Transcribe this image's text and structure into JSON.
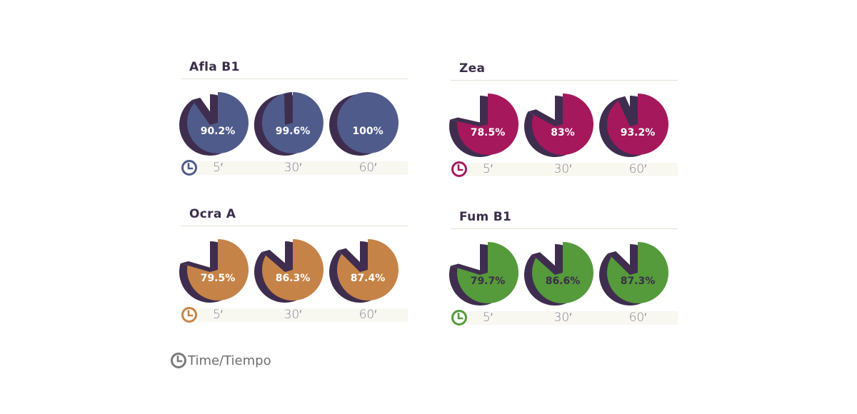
{
  "chart_data": [
    {
      "type": "pie",
      "title": "Afla B1",
      "categories": [
        "5′",
        "30′",
        "60′"
      ],
      "values": [
        90.2,
        99.6,
        100
      ],
      "labels": [
        "90.2%",
        "99.6%",
        "100%"
      ],
      "color": "#4f5b8b",
      "shadow_color": "#3f2d4f",
      "label_color": "#ffffff"
    },
    {
      "type": "pie",
      "title": "Zea",
      "categories": [
        "5′",
        "30′",
        "60′"
      ],
      "values": [
        78.5,
        83,
        93.2
      ],
      "labels": [
        "78.5%",
        "83%",
        "93.2%"
      ],
      "color": "#a5185c",
      "shadow_color": "#3f2d4f",
      "label_color": "#ffffff"
    },
    {
      "type": "pie",
      "title": "Ocra A",
      "categories": [
        "5′",
        "30′",
        "60′"
      ],
      "values": [
        79.5,
        86.3,
        87.4
      ],
      "labels": [
        "79.5%",
        "86.3%",
        "87.4%"
      ],
      "color": "#c68347",
      "shadow_color": "#3f2d4f",
      "label_color": "#ffffff"
    },
    {
      "type": "pie",
      "title": "Fum B1",
      "categories": [
        "5′",
        "30′",
        "60′"
      ],
      "values": [
        79.7,
        86.6,
        87.3
      ],
      "labels": [
        "79.7%",
        "86.6%",
        "87.3%"
      ],
      "color": "#559a3b",
      "shadow_color": "#3f2d4f",
      "label_color": "#3b2d4a"
    }
  ],
  "legend": {
    "icon": "clock-icon",
    "label": "Time/Tiempo",
    "color": "#7b7b7b"
  }
}
